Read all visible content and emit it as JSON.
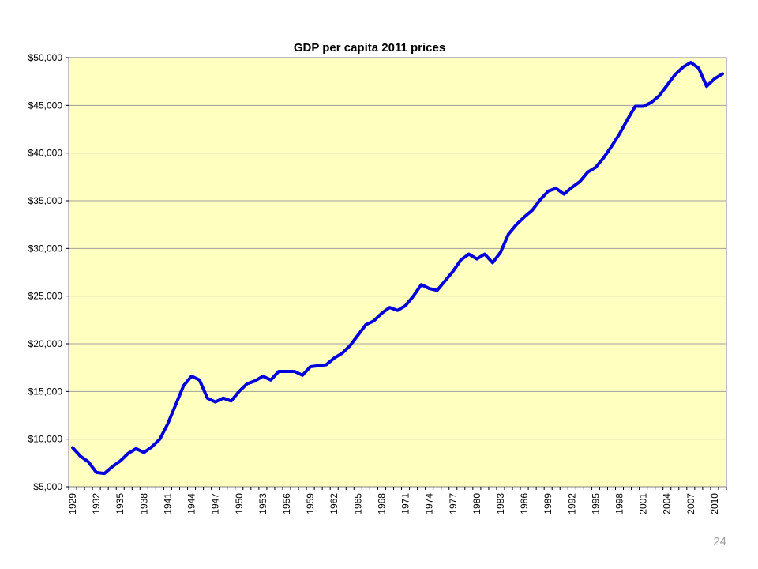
{
  "slide": {
    "page_number": "24"
  },
  "chart_data": {
    "type": "line",
    "title": "GDP per capita 2011 prices",
    "xlabel": "",
    "ylabel": "",
    "ylim": [
      5000,
      50000
    ],
    "y_ticks": [
      5000,
      10000,
      15000,
      20000,
      25000,
      30000,
      35000,
      40000,
      45000,
      50000
    ],
    "y_tick_labels": [
      "$5,000",
      "$10,000",
      "$15,000",
      "$20,000",
      "$25,000",
      "$30,000",
      "$35,000",
      "$40,000",
      "$45,000",
      "$50,000"
    ],
    "x_tick_labels": [
      "1929",
      "1932",
      "1935",
      "1938",
      "1941",
      "1944",
      "1947",
      "1950",
      "1953",
      "1956",
      "1959",
      "1962",
      "1965",
      "1968",
      "1971",
      "1974",
      "1977",
      "1980",
      "1983",
      "1986",
      "1989",
      "1992",
      "1995",
      "1998",
      "2001",
      "2004",
      "2007",
      "2010"
    ],
    "grid": true,
    "colors": {
      "line": "#0000dd",
      "plot_background": "#ffffc0",
      "grid": "#a0a0a0"
    },
    "x": [
      1929,
      1930,
      1931,
      1932,
      1933,
      1934,
      1935,
      1936,
      1937,
      1938,
      1939,
      1940,
      1941,
      1942,
      1943,
      1944,
      1945,
      1946,
      1947,
      1948,
      1949,
      1950,
      1951,
      1952,
      1953,
      1954,
      1955,
      1956,
      1957,
      1958,
      1959,
      1960,
      1961,
      1962,
      1963,
      1964,
      1965,
      1966,
      1967,
      1968,
      1969,
      1970,
      1971,
      1972,
      1973,
      1974,
      1975,
      1976,
      1977,
      1978,
      1979,
      1980,
      1981,
      1982,
      1983,
      1984,
      1985,
      1986,
      1987,
      1988,
      1989,
      1990,
      1991,
      1992,
      1993,
      1994,
      1995,
      1996,
      1997,
      1998,
      1999,
      2000,
      2001,
      2002,
      2003,
      2004,
      2005,
      2006,
      2007,
      2008,
      2009,
      2010,
      2011
    ],
    "series": [
      {
        "values": [
          9100,
          8200,
          7600,
          6500,
          6400,
          7100,
          7700,
          8500,
          9000,
          8600,
          9200,
          10000,
          11600,
          13600,
          15600,
          16600,
          16200,
          14300,
          13900,
          14300,
          14000,
          15000,
          15800,
          16100,
          16600,
          16200,
          17100,
          17100,
          17100,
          16700,
          17600,
          17700,
          17800,
          18500,
          19000,
          19800,
          20900,
          22000,
          22400,
          23200,
          23800,
          23500,
          24000,
          25000,
          26200,
          25800,
          25600,
          26600,
          27600,
          28800,
          29400,
          28900,
          29400,
          28500,
          29600,
          31500,
          32500,
          33300,
          34000,
          35100,
          36000,
          36300,
          35700,
          36400,
          37000,
          38000,
          38500,
          39500,
          40700,
          42000,
          43500,
          44900,
          44900,
          45300,
          46000,
          47100,
          48200,
          49000,
          49500,
          48900,
          47000,
          47800,
          48300
        ]
      }
    ]
  }
}
